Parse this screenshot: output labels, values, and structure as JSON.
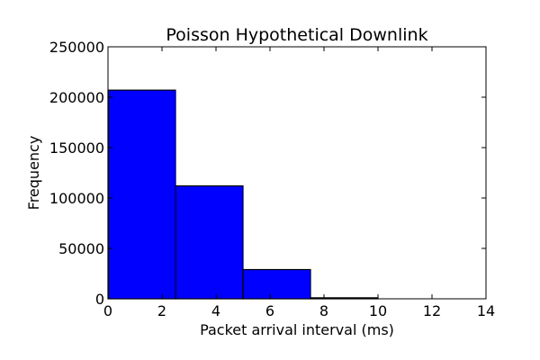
{
  "chart_data": {
    "type": "bar",
    "title": "Poisson Hypothetical Downlink",
    "xlabel": "Packet arrival interval (ms)",
    "ylabel": "Frequency",
    "bins": [
      {
        "start": 0,
        "end": 2.5,
        "value": 207000
      },
      {
        "start": 2.5,
        "end": 5,
        "value": 112000
      },
      {
        "start": 5,
        "end": 7.5,
        "value": 29000
      },
      {
        "start": 7.5,
        "end": 10,
        "value": 1000
      },
      {
        "start": 10,
        "end": 12.5,
        "value": 0
      }
    ],
    "xlim": [
      0,
      14
    ],
    "ylim": [
      0,
      250000
    ],
    "xticks": [
      0,
      2,
      4,
      6,
      8,
      10,
      12,
      14
    ],
    "yticks": [
      0,
      50000,
      100000,
      150000,
      200000,
      250000
    ],
    "grid": false,
    "bar_color": "#0000ff",
    "edge_color": "#000000"
  }
}
